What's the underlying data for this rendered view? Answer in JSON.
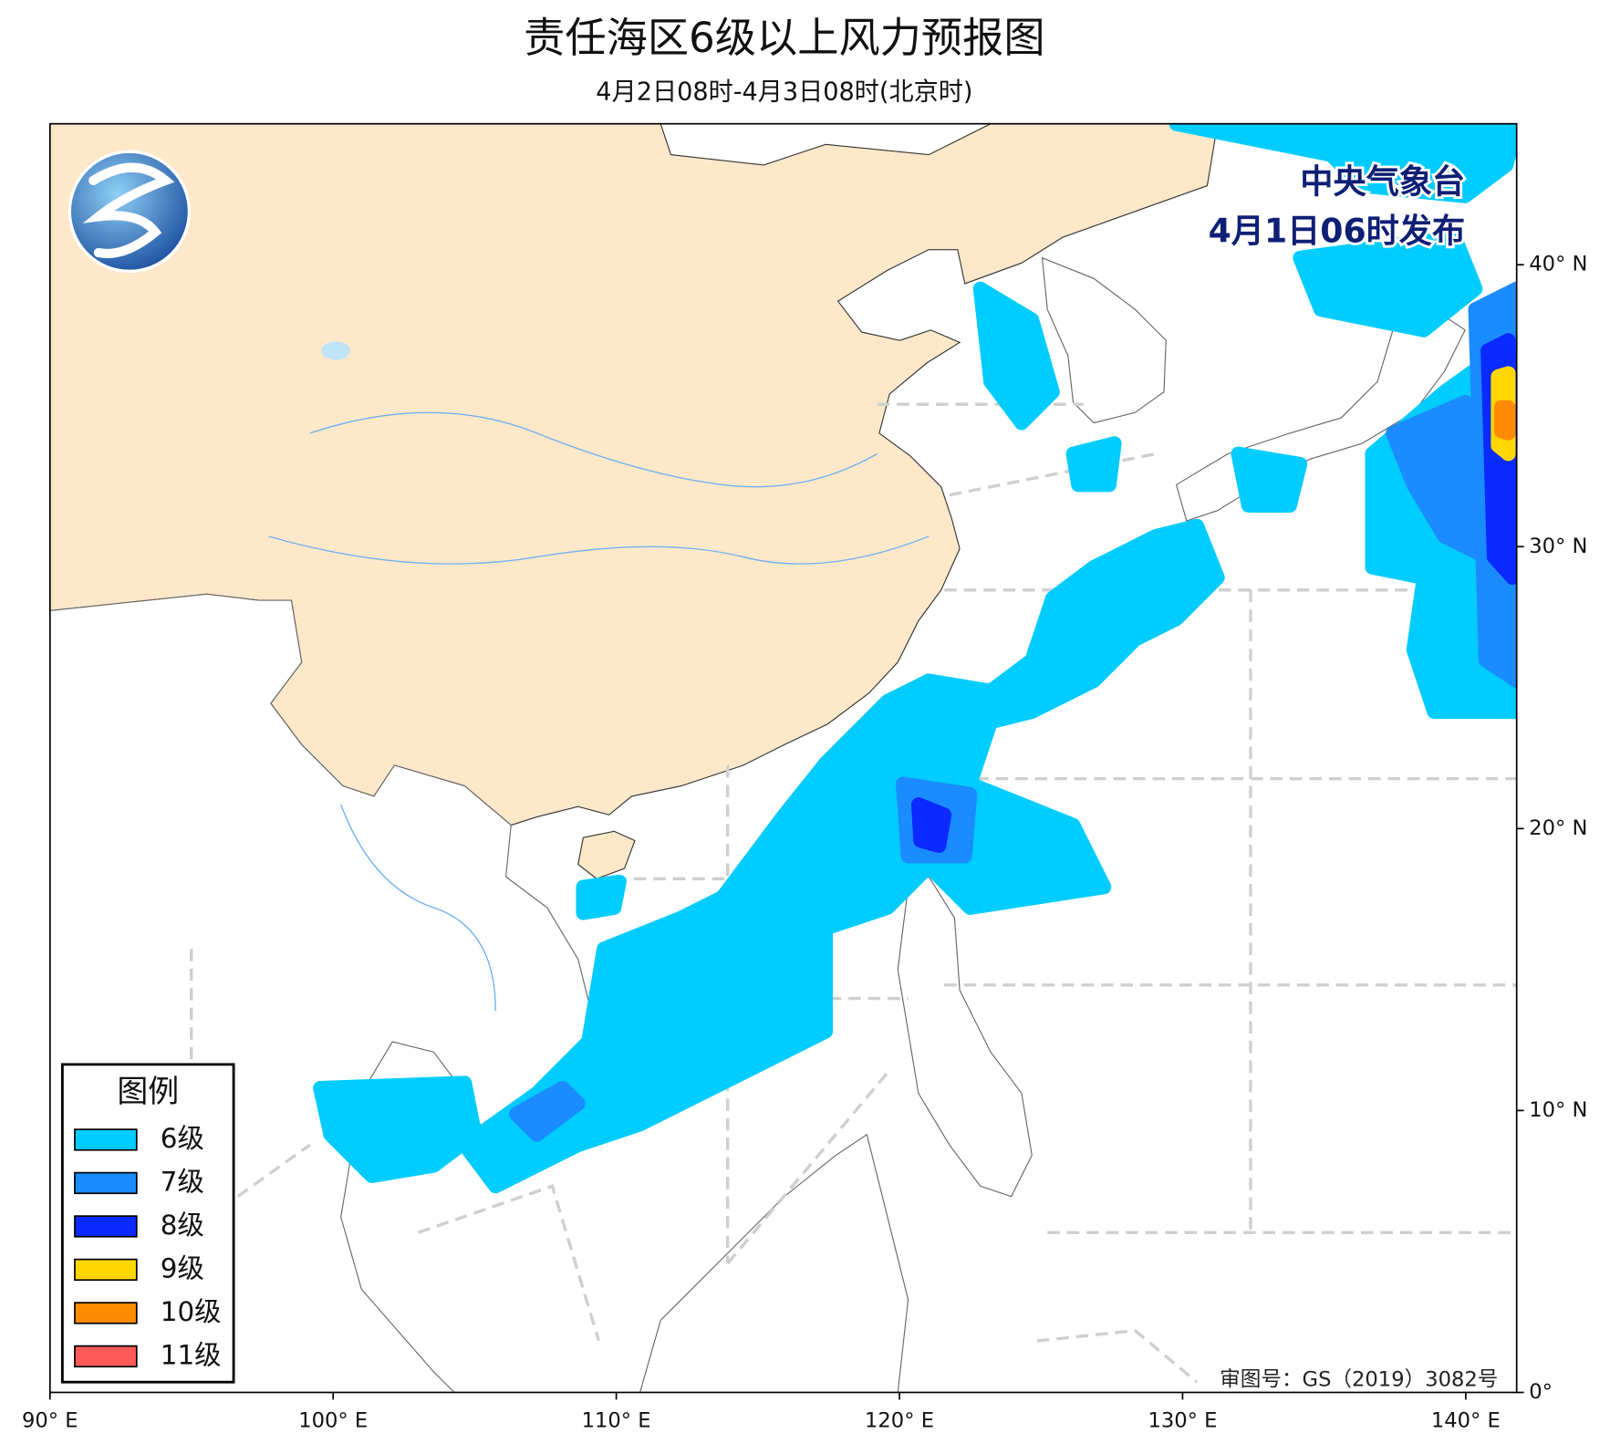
{
  "header": {
    "title": "责任海区6级以上风力预报图",
    "subtitle": "4月2日08时-4月3日08时(北京时)"
  },
  "issuer": {
    "name": "中央气象台",
    "time": "4月1日06时发布"
  },
  "map": {
    "xlim": [
      90,
      141.8
    ],
    "ylim": [
      0,
      45
    ],
    "xticks": [
      {
        "value": 90,
        "label": "90° E"
      },
      {
        "value": 100,
        "label": "100° E"
      },
      {
        "value": 110,
        "label": "110° E"
      },
      {
        "value": 120,
        "label": "120° E"
      },
      {
        "value": 130,
        "label": "130° E"
      },
      {
        "value": 140,
        "label": "140° E"
      }
    ],
    "yticks": [
      {
        "value": 0,
        "label": "0°"
      },
      {
        "value": 10,
        "label": "10° N"
      },
      {
        "value": 20,
        "label": "20° N"
      },
      {
        "value": 30,
        "label": "30° N"
      },
      {
        "value": 40,
        "label": "40° N"
      }
    ]
  },
  "legend": {
    "title": "图例",
    "items": [
      {
        "label": "6级",
        "color": "#00ccff"
      },
      {
        "label": "7级",
        "color": "#1a8cff"
      },
      {
        "label": "8级",
        "color": "#0a2aff"
      },
      {
        "label": "9级",
        "color": "#ffd700"
      },
      {
        "label": "10级",
        "color": "#ff8c00"
      },
      {
        "label": "11级",
        "color": "#ff5a5a"
      }
    ]
  },
  "footer": {
    "approval": "审图号：GS（2019）3082号"
  }
}
